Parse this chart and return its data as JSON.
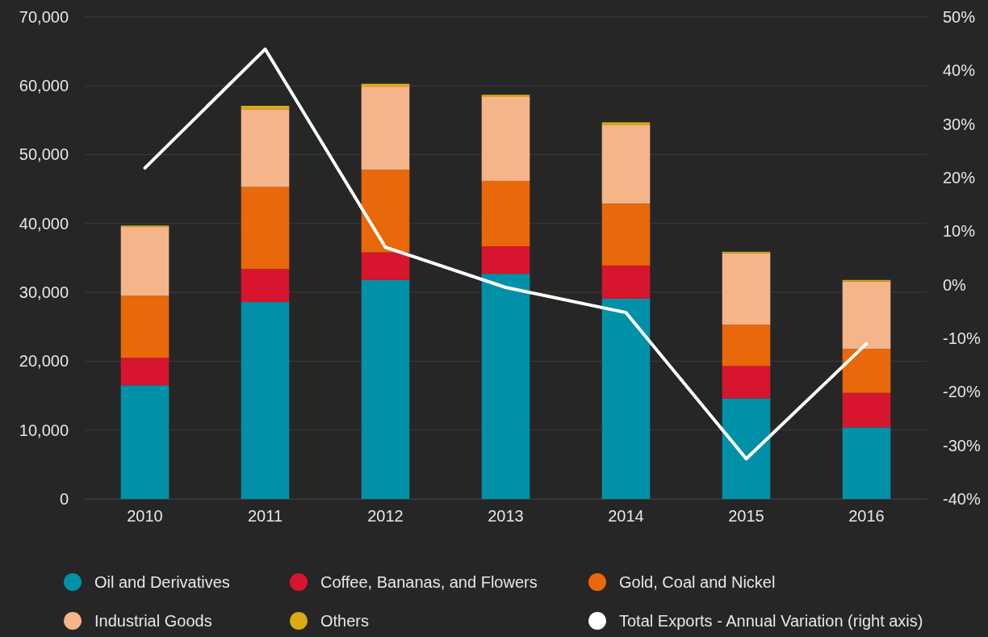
{
  "chart_data": {
    "type": "bar",
    "stacked": true,
    "categories": [
      "2010",
      "2011",
      "2012",
      "2013",
      "2014",
      "2015",
      "2016"
    ],
    "series": [
      {
        "name": "Oil and Derivatives",
        "color": "#0091a8",
        "values": [
          16500,
          28600,
          31800,
          32700,
          29100,
          14600,
          10400
        ]
      },
      {
        "name": "Coffee, Bananas, and Flowers",
        "color": "#d7152e",
        "values": [
          4000,
          4800,
          4000,
          4000,
          4800,
          4700,
          5000
        ]
      },
      {
        "name": "Gold, Coal and Nickel",
        "color": "#e8680a",
        "values": [
          9000,
          11900,
          12000,
          9500,
          9000,
          6000,
          6400
        ]
      },
      {
        "name": "Industrial Goods",
        "color": "#f5b48a",
        "values": [
          10000,
          11300,
          12100,
          12200,
          11400,
          10400,
          9800
        ]
      },
      {
        "name": "Others",
        "color": "#d9ac12",
        "values": [
          200,
          500,
          400,
          300,
          400,
          200,
          200
        ]
      },
      {
        "name": "Total Exports - Annual Variation (right axis)",
        "color": "#ffffff",
        "type": "line",
        "axis": "y2",
        "values": [
          21.8,
          44,
          7,
          -0.5,
          -5.2,
          -32.5,
          -11
        ]
      }
    ],
    "ylim": [
      0,
      70000
    ],
    "yticks": [
      {
        "value": 0,
        "label": "0"
      },
      {
        "value": 10000,
        "label": "10,000"
      },
      {
        "value": 20000,
        "label": "20,000"
      },
      {
        "value": 30000,
        "label": "30,000"
      },
      {
        "value": 40000,
        "label": "40,000"
      },
      {
        "value": 50000,
        "label": "50,000"
      },
      {
        "value": 60000,
        "label": "60,000"
      },
      {
        "value": 70000,
        "label": "70,000"
      }
    ],
    "y2lim": [
      -40,
      50
    ],
    "y2ticks": [
      {
        "value": -40,
        "label": "-40%"
      },
      {
        "value": -30,
        "label": "-30%"
      },
      {
        "value": -20,
        "label": "-20%"
      },
      {
        "value": -10,
        "label": "-10%"
      },
      {
        "value": 0,
        "label": "0%"
      },
      {
        "value": 10,
        "label": "10%"
      },
      {
        "value": 20,
        "label": "20%"
      },
      {
        "value": 30,
        "label": "30%"
      },
      {
        "value": 40,
        "label": "40%"
      },
      {
        "value": 50,
        "label": "50%"
      }
    ],
    "grid": "y",
    "legend": "bottom",
    "marker": "none"
  }
}
